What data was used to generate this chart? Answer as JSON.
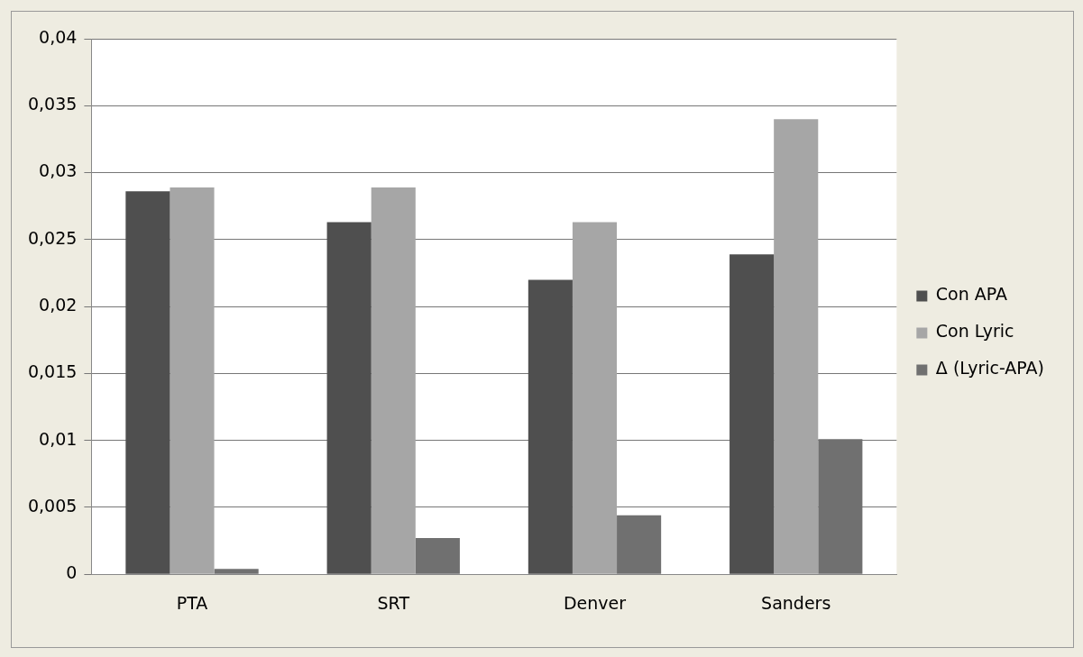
{
  "chart_data": {
    "type": "bar",
    "categories": [
      "PTA",
      "SRT",
      "Denver",
      "Sanders"
    ],
    "series": [
      {
        "name": "Con APA",
        "color": "#4f4f4f",
        "values": [
          0.0286,
          0.0263,
          0.022,
          0.0239
        ]
      },
      {
        "name": "Con Lyric",
        "color": "#a6a6a6",
        "values": [
          0.0289,
          0.0289,
          0.0263,
          0.034
        ]
      },
      {
        "name": "Δ (Lyric-APA)",
        "color": "#707070",
        "values": [
          0.0004,
          0.0027,
          0.0044,
          0.0101
        ]
      }
    ],
    "ylim": [
      0,
      0.04
    ],
    "yticks": [
      0,
      {
        "value": 0.005,
        "label": "0,005"
      },
      {
        "value": 0.01,
        "label": "0,01"
      },
      {
        "value": 0.015,
        "label": "0,015"
      },
      {
        "value": 0.02,
        "label": "0,02"
      },
      {
        "value": 0.025,
        "label": "0,025"
      },
      {
        "value": 0.03,
        "label": "0,03"
      },
      {
        "value": 0.035,
        "label": "0,035"
      },
      {
        "value": 0.04,
        "label": "0,04"
      }
    ],
    "grid": "y",
    "legend": "right"
  }
}
